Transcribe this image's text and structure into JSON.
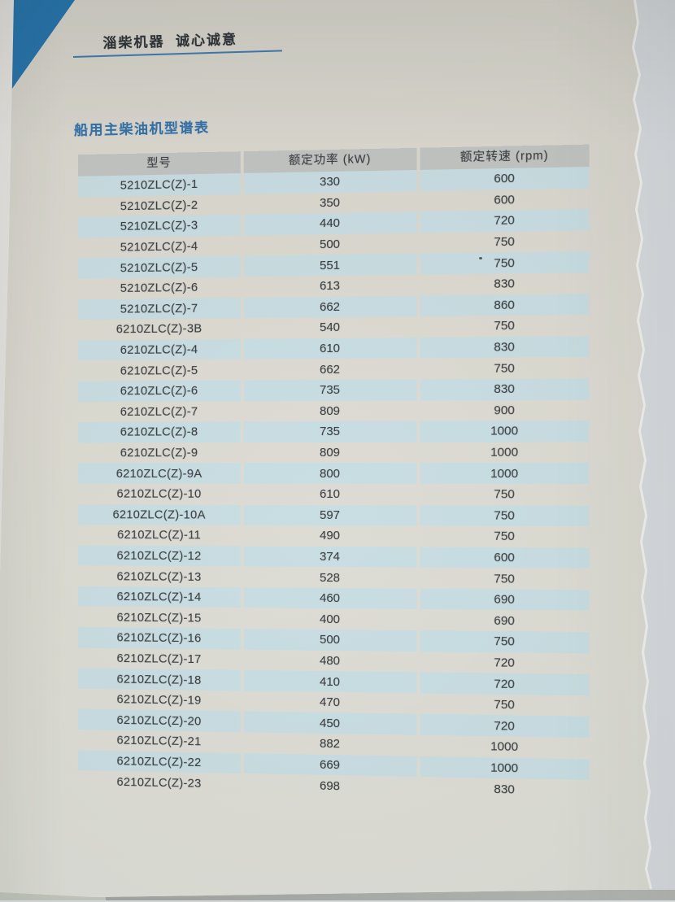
{
  "header": {
    "slogan": "淄柴机器  诚心诚意",
    "title": "船用主柴油机型谱表"
  },
  "table": {
    "columns": [
      "型号",
      "额定功率 (kW)",
      "额定转速 (rpm)"
    ],
    "rows": [
      {
        "model": "5210ZLC(Z)-1",
        "power": "330",
        "speed": "600"
      },
      {
        "model": "5210ZLC(Z)-2",
        "power": "350",
        "speed": "600"
      },
      {
        "model": "5210ZLC(Z)-3",
        "power": "440",
        "speed": "720"
      },
      {
        "model": "5210ZLC(Z)-4",
        "power": "500",
        "speed": "750"
      },
      {
        "model": "5210ZLC(Z)-5",
        "power": "551",
        "speed": "750"
      },
      {
        "model": "5210ZLC(Z)-6",
        "power": "613",
        "speed": "830"
      },
      {
        "model": "5210ZLC(Z)-7",
        "power": "662",
        "speed": "860"
      },
      {
        "model": "6210ZLC(Z)-3B",
        "power": "540",
        "speed": "750"
      },
      {
        "model": "6210ZLC(Z)-4",
        "power": "610",
        "speed": "830"
      },
      {
        "model": "6210ZLC(Z)-5",
        "power": "662",
        "speed": "750"
      },
      {
        "model": "6210ZLC(Z)-6",
        "power": "735",
        "speed": "830"
      },
      {
        "model": "6210ZLC(Z)-7",
        "power": "809",
        "speed": "900"
      },
      {
        "model": "6210ZLC(Z)-8",
        "power": "735",
        "speed": "1000"
      },
      {
        "model": "6210ZLC(Z)-9",
        "power": "809",
        "speed": "1000"
      },
      {
        "model": "6210ZLC(Z)-9A",
        "power": "800",
        "speed": "1000"
      },
      {
        "model": "6210ZLC(Z)-10",
        "power": "610",
        "speed": "750"
      },
      {
        "model": "6210ZLC(Z)-10A",
        "power": "597",
        "speed": "750"
      },
      {
        "model": "6210ZLC(Z)-11",
        "power": "490",
        "speed": "750"
      },
      {
        "model": "6210ZLC(Z)-12",
        "power": "374",
        "speed": "600"
      },
      {
        "model": "6210ZLC(Z)-13",
        "power": "528",
        "speed": "750"
      },
      {
        "model": "6210ZLC(Z)-14",
        "power": "460",
        "speed": "690"
      },
      {
        "model": "6210ZLC(Z)-15",
        "power": "400",
        "speed": "690"
      },
      {
        "model": "6210ZLC(Z)-16",
        "power": "500",
        "speed": "750"
      },
      {
        "model": "6210ZLC(Z)-17",
        "power": "480",
        "speed": "720"
      },
      {
        "model": "6210ZLC(Z)-18",
        "power": "410",
        "speed": "720"
      },
      {
        "model": "6210ZLC(Z)-19",
        "power": "470",
        "speed": "750"
      },
      {
        "model": "6210ZLC(Z)-20",
        "power": "450",
        "speed": "720"
      },
      {
        "model": "6210ZLC(Z)-21",
        "power": "882",
        "speed": "1000"
      },
      {
        "model": "6210ZLC(Z)-22",
        "power": "669",
        "speed": "1000"
      },
      {
        "model": "6210ZLC(Z)-23",
        "power": "698",
        "speed": "830"
      }
    ]
  },
  "colors": {
    "accent_blue": "#2173ae",
    "underline_blue": "#3c78b2",
    "title_blue": "#2e6fa9",
    "stripe_blue": "#c7dde2",
    "header_row_gray": "#c1c3c1"
  }
}
